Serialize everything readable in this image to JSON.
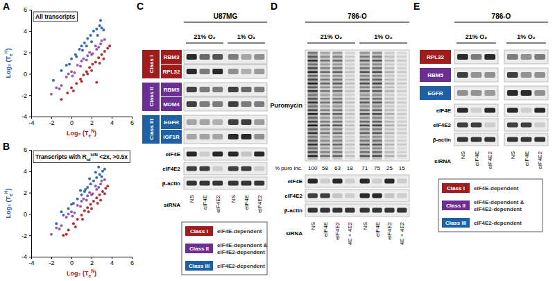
{
  "chart_data": [
    {
      "type": "scatter",
      "panel": "A",
      "title": "All transcripts",
      "xlabel": {
        "text": "Log₂ (T",
        "sub": "e",
        "sup": "N",
        "after": ")"
      },
      "ylabel": {
        "text": "Log₂ (T",
        "sub": "e",
        "sup": "H",
        "after": ")"
      },
      "xlim": [
        -4,
        6
      ],
      "ylim": [
        -4,
        6
      ],
      "xticks": [
        -4,
        -2,
        0,
        2,
        4,
        6
      ],
      "yticks": [
        -4,
        -2,
        0,
        2,
        4,
        6
      ],
      "series": [
        {
          "color": "#1f5aa6",
          "x": [
            -1.8,
            -1,
            -0.5,
            0,
            0.4,
            0.8,
            1,
            1.3,
            1.6,
            1.9,
            2.2,
            2.5,
            2.8,
            3,
            3.2,
            1.5,
            2,
            0.5,
            2.6,
            1.1,
            -0.2,
            2.9
          ],
          "values": [
            -0.6,
            0.3,
            0.8,
            1.4,
            1.8,
            2.3,
            2.6,
            2.9,
            3.3,
            3.6,
            4,
            4.2,
            4.5,
            4.3,
            4.1,
            2.6,
            3,
            1.6,
            3.6,
            2.2,
            0.9,
            5
          ]
        },
        {
          "color": "#a51d1d",
          "x": [
            -1,
            -0.4,
            0,
            0.5,
            0.9,
            1.2,
            1.5,
            1.8,
            2.1,
            2.4,
            2.7,
            3,
            3.3,
            3.6,
            3.8,
            1,
            2,
            2.8,
            3.2,
            0.2,
            1.6,
            2.5
          ],
          "values": [
            -2.4,
            -1.8,
            -1.3,
            -0.9,
            -0.5,
            -0.1,
            0.2,
            0.6,
            0.9,
            1.1,
            1.5,
            1.8,
            2.1,
            2.4,
            2.6,
            -0.7,
            0.3,
            1,
            1.4,
            -1.6,
            0,
            -0.8
          ]
        },
        {
          "color": "#8a4ba8",
          "x": [
            -2,
            -1.5,
            -1,
            -0.5,
            0,
            0.3,
            0.6,
            0.9,
            1.2,
            1.5,
            1.8,
            2.1,
            2.4,
            2.7,
            3,
            3.3,
            -1.2,
            0.1,
            1,
            2,
            2.9,
            -0.3,
            1.6,
            2.5
          ],
          "values": [
            -1.9,
            -1.3,
            -1.1,
            -0.3,
            0.2,
            0.1,
            0.8,
            0.7,
            1.4,
            1.3,
            2,
            1.9,
            2.6,
            2.5,
            3.1,
            3.2,
            -1.4,
            -0.2,
            1.2,
            1.8,
            2.8,
            0,
            1.7,
            2.3
          ]
        }
      ]
    },
    {
      "type": "scatter",
      "panel": "B",
      "title": {
        "text": "Transcripts with R",
        "sub": "td",
        "sup": "H/N",
        "after": " <2x, >0.5x"
      },
      "xlabel": {
        "text": "Log₂ (T",
        "sub": "e",
        "sup": "N",
        "after": ")"
      },
      "ylabel": {
        "text": "Log₂ (T",
        "sub": "e",
        "sup": "H",
        "after": ")"
      },
      "xlim": [
        -4,
        6
      ],
      "ylim": [
        -4,
        6
      ],
      "xticks": [
        -4,
        -2,
        0,
        2,
        4,
        6
      ],
      "yticks": [
        -4,
        -2,
        0,
        2,
        4,
        6
      ],
      "series": [
        {
          "color": "#1f5aa6",
          "x": [
            -1.5,
            -0.8,
            -0.3,
            0.2,
            0.6,
            1,
            1.3,
            1.6,
            1.9,
            2.2,
            2.5,
            2.8,
            3.1,
            3.3,
            0.9,
            1.8,
            2.4,
            -1,
            0,
            1.4,
            2.7,
            3
          ],
          "values": [
            -0.9,
            -0.1,
            0.5,
            1,
            1.4,
            1.8,
            2.1,
            2.5,
            2.8,
            3.1,
            3.4,
            3.7,
            4,
            4.2,
            2.2,
            3.3,
            3.9,
            0.2,
            0.9,
            2.3,
            4.4,
            3.5
          ]
        },
        {
          "color": "#a51d1d",
          "x": [
            -0.8,
            -0.3,
            0.2,
            0.6,
            1,
            1.3,
            1.6,
            1.9,
            2.2,
            2.5,
            2.8,
            3.1,
            3.4,
            3.6,
            1.1,
            2,
            2.9,
            0.4,
            1.7,
            2.6,
            3.3,
            -0.5
          ],
          "values": [
            -2,
            -1.5,
            -0.9,
            -0.5,
            -0.1,
            0.3,
            0.6,
            0.9,
            1.2,
            1.5,
            1.8,
            2.1,
            2.4,
            2.6,
            -0.5,
            0.5,
            1.3,
            -1.2,
            0.2,
            1,
            1.9,
            -1.9
          ]
        },
        {
          "color": "#8a4ba8",
          "x": [
            -2,
            -1.5,
            -1,
            -0.5,
            0,
            0.3,
            0.6,
            0.9,
            1.2,
            1.5,
            1.8,
            2.1,
            2.4,
            2.7,
            3,
            3.3,
            -1.2,
            0.1,
            1,
            2,
            2.9,
            -0.3,
            1.6,
            2.5
          ],
          "values": [
            -1.9,
            -1.3,
            -1.1,
            -0.3,
            0.2,
            0.1,
            0.8,
            0.7,
            1.4,
            1.3,
            2,
            1.9,
            2.6,
            2.5,
            3.1,
            3.2,
            -1.4,
            -0.2,
            1.2,
            1.8,
            2.8,
            0,
            1.7,
            2.3
          ]
        }
      ]
    }
  ],
  "blots": {
    "levels_lim": [
      0,
      1
    ],
    "C": {
      "panel": "C",
      "cell_line": "U87MG",
      "conditions": [
        "21% O₂",
        "1% O₂"
      ],
      "sirna_title": "siRNA",
      "sirna": [
        "NS",
        "eIF4E",
        "eIF4E2"
      ],
      "groups": [
        {
          "class": "Class I",
          "color": "#a01d1d",
          "rows": [
            {
              "name": "RBM3",
              "levels": [
                0.9,
                0.6,
                0.7,
                0.5,
                0.3,
                0.4
              ]
            },
            {
              "name": "RPL32",
              "levels": [
                0.9,
                0.5,
                0.9,
                0.4,
                0.25,
                0.35
              ]
            }
          ]
        },
        {
          "class": "Class II",
          "color": "#6b2f93",
          "rows": [
            {
              "name": "RBM5",
              "levels": [
                0.8,
                0.5,
                0.5,
                0.8,
                0.6,
                0.5
              ]
            },
            {
              "name": "MDM4",
              "levels": [
                0.8,
                0.5,
                0.5,
                0.8,
                0.5,
                0.5
              ]
            }
          ]
        },
        {
          "class": "Class III",
          "color": "#1f5fa3",
          "rows": [
            {
              "name": "EGFR",
              "levels": [
                0.3,
                0.3,
                0.25,
                0.8,
                0.8,
                0.35
              ]
            },
            {
              "name": "IGF1R",
              "levels": [
                0.3,
                0.3,
                0.3,
                0.9,
                0.9,
                0.4
              ]
            }
          ]
        }
      ],
      "controls": [
        {
          "name": "eIF4E",
          "levels": [
            0.9,
            0.1,
            0.9,
            0.9,
            0.15,
            0.9
          ]
        },
        {
          "name": "eIF4E2",
          "levels": [
            0.8,
            0.8,
            0.1,
            0.8,
            0.8,
            0.1
          ]
        },
        {
          "name": "β-actin",
          "levels": [
            0.85,
            0.85,
            0.85,
            0.85,
            0.85,
            0.85
          ]
        }
      ],
      "legend": [
        {
          "class": "Class I",
          "color": "#a01d1d",
          "text": [
            "eIF4E-dependent"
          ]
        },
        {
          "class": "Class II",
          "color": "#6b2f93",
          "text": [
            "eIF4E-dependent &",
            "eIF4E2-dependent"
          ]
        },
        {
          "class": "Class III",
          "color": "#1f5fa3",
          "text": [
            "eIF4E2-dependent"
          ]
        }
      ]
    },
    "D": {
      "panel": "D",
      "cell_line": "786-O",
      "conditions": [
        "21% O₂",
        "1% O₂"
      ],
      "sirna_title": "siRNA",
      "sirna": [
        "NS",
        "eIF4E",
        "eIF4E2",
        "4E + 4E2"
      ],
      "smear": {
        "name": "Puromycin",
        "values_title": "% puro inc.",
        "values": [
          100,
          58,
          63,
          18,
          71,
          75,
          25,
          15
        ],
        "lim": [
          0,
          100
        ]
      },
      "controls": [
        {
          "name": "eIF4E",
          "levels": [
            0.9,
            0.1,
            0.9,
            0.1,
            0.9,
            0.1,
            0.9,
            0.1
          ]
        },
        {
          "name": "eIF4E2",
          "levels": [
            0.8,
            0.8,
            0.15,
            0.1,
            0.9,
            0.9,
            0.15,
            0.1
          ]
        },
        {
          "name": "β-actin",
          "levels": [
            0.85,
            0.85,
            0.85,
            0.85,
            0.85,
            0.85,
            0.85,
            0.85
          ]
        }
      ]
    },
    "E": {
      "panel": "E",
      "cell_line": "786-O",
      "conditions": [
        "21% O₂",
        "1% O₂"
      ],
      "sirna_title": "siRNA",
      "sirna": [
        "NS",
        "eIF4E",
        "eIF4E2"
      ],
      "rows": [
        {
          "name": "RPL32",
          "color": "#a01d1d",
          "levels": [
            0.9,
            0.5,
            0.9,
            0.5,
            0.4,
            0.5
          ]
        },
        {
          "name": "RBM5",
          "color": "#6b2f93",
          "levels": [
            0.8,
            0.4,
            0.4,
            0.8,
            0.4,
            0.4
          ]
        },
        {
          "name": "EGFR",
          "color": "#1f5fa3",
          "levels": [
            0.4,
            0.4,
            0.35,
            0.9,
            0.9,
            0.4
          ]
        }
      ],
      "controls": [
        {
          "name": "eIF4E",
          "levels": [
            0.9,
            0.1,
            0.9,
            0.9,
            0.1,
            0.9
          ]
        },
        {
          "name": "eIF4E2",
          "levels": [
            0.8,
            0.8,
            0.1,
            0.8,
            0.8,
            0.1
          ]
        },
        {
          "name": "β-actin",
          "levels": [
            0.85,
            0.85,
            0.85,
            0.85,
            0.85,
            0.85
          ]
        }
      ],
      "legend": [
        {
          "class": "Class I",
          "color": "#a01d1d",
          "text": [
            "eIF4E-dependent"
          ]
        },
        {
          "class": "Class II",
          "color": "#6b2f93",
          "text": [
            "eIF4E-dependent &",
            "eIF4E2-dependent"
          ]
        },
        {
          "class": "Class III",
          "color": "#1f5fa3",
          "text": [
            "eIF4E2-dependent"
          ]
        }
      ]
    }
  }
}
